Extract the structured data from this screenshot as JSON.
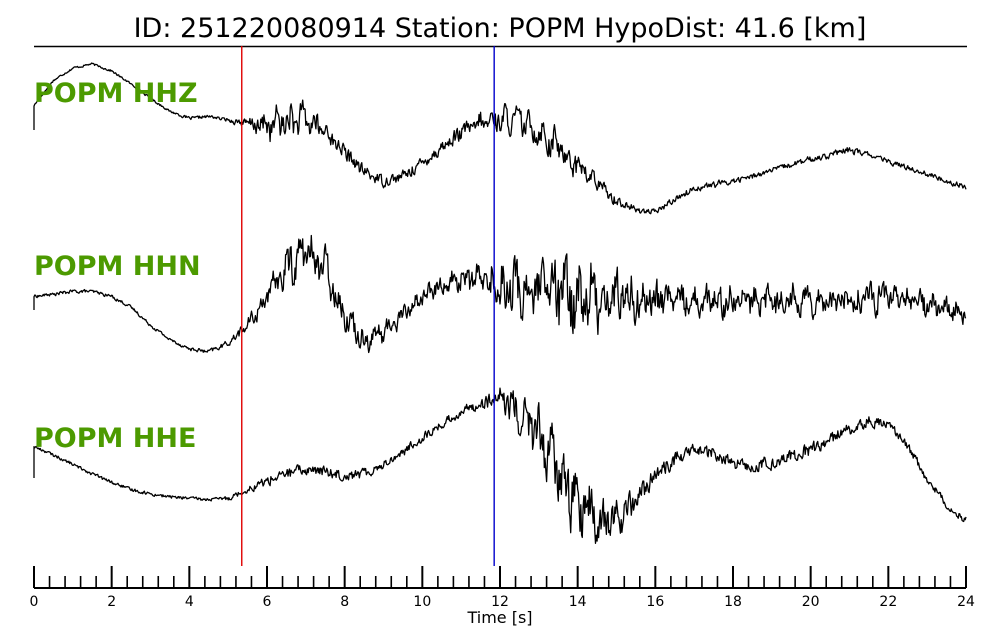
{
  "header": {
    "title": "ID: 251220080914   Station: POPM   HypoDist:    41.6 [km]"
  },
  "colors": {
    "trace": "#000000",
    "label": "#4c9a00",
    "p_pick": "#e00000",
    "s_pick": "#0000cc"
  },
  "chart_data": {
    "type": "line",
    "title": "ID: 251220080914   Station: POPM   HypoDist:    41.6 [km]",
    "xlabel": "Time [s]",
    "ylabel": "",
    "xlim": [
      0,
      24
    ],
    "grid": false,
    "x_ticks": [
      0,
      2,
      4,
      6,
      8,
      10,
      12,
      14,
      16,
      18,
      20,
      22,
      24
    ],
    "x_tick_labels": [
      "0",
      "2",
      "4",
      "6",
      "8",
      "10",
      "12",
      "14",
      "16",
      "18",
      "20",
      "22",
      "24"
    ],
    "x_minor_step": 0.4,
    "markers": [
      {
        "name": "P pick",
        "x": 5.35,
        "color": "#e00000"
      },
      {
        "name": "S pick",
        "x": 11.85,
        "color": "#0000cc"
      }
    ],
    "series": [
      {
        "name": "POPM HHZ",
        "x": [
          0,
          0.5,
          1,
          1.5,
          2,
          2.5,
          3,
          3.5,
          4,
          4.5,
          5,
          5.5,
          6,
          6.5,
          7,
          7.5,
          8,
          8.5,
          9,
          9.5,
          10,
          10.5,
          11,
          11.5,
          12,
          12.5,
          13,
          13.5,
          14,
          14.5,
          15,
          15.5,
          16,
          16.5,
          17,
          17.5,
          18,
          18.5,
          19,
          19.5,
          20,
          20.5,
          21,
          21.5,
          22,
          22.5,
          23,
          23.5,
          24
        ],
        "values": [
          0.2,
          0.55,
          0.72,
          0.78,
          0.68,
          0.5,
          0.3,
          0.12,
          0.02,
          0.05,
          0.0,
          -0.05,
          -0.08,
          -0.02,
          0.0,
          -0.15,
          -0.45,
          -0.72,
          -0.85,
          -0.78,
          -0.6,
          -0.38,
          -0.18,
          -0.05,
          0.02,
          -0.02,
          -0.15,
          -0.38,
          -0.62,
          -0.88,
          -1.12,
          -1.25,
          -1.28,
          -1.1,
          -0.95,
          -0.9,
          -0.85,
          -0.78,
          -0.7,
          -0.62,
          -0.55,
          -0.48,
          -0.42,
          -0.48,
          -0.58,
          -0.66,
          -0.75,
          -0.85,
          -0.93
        ],
        "noise": [
          0.02,
          0.02,
          0.02,
          0.02,
          0.02,
          0.02,
          0.02,
          0.02,
          0.03,
          0.03,
          0.03,
          0.1,
          0.24,
          0.3,
          0.24,
          0.18,
          0.14,
          0.12,
          0.1,
          0.1,
          0.12,
          0.12,
          0.14,
          0.18,
          0.2,
          0.22,
          0.24,
          0.26,
          0.22,
          0.14,
          0.1,
          0.06,
          0.05,
          0.06,
          0.06,
          0.06,
          0.05,
          0.05,
          0.05,
          0.05,
          0.06,
          0.06,
          0.06,
          0.05,
          0.05,
          0.05,
          0.05,
          0.05,
          0.05
        ]
      },
      {
        "name": "POPM HHN",
        "x": [
          0,
          0.5,
          1,
          1.5,
          2,
          2.5,
          3,
          3.5,
          4,
          4.5,
          5,
          5.5,
          6,
          6.5,
          7,
          7.5,
          8,
          8.5,
          9,
          9.5,
          10,
          10.5,
          11,
          11.5,
          12,
          12.5,
          13,
          13.5,
          14,
          14.5,
          15,
          15.5,
          16,
          16.5,
          17,
          17.5,
          18,
          18.5,
          19,
          19.5,
          20,
          20.5,
          21,
          21.5,
          22,
          22.5,
          23,
          23.5,
          24
        ],
        "values": [
          0.05,
          0.08,
          0.12,
          0.12,
          0.05,
          -0.1,
          -0.35,
          -0.55,
          -0.68,
          -0.72,
          -0.6,
          -0.35,
          0.05,
          0.45,
          0.68,
          0.45,
          -0.2,
          -0.55,
          -0.45,
          -0.2,
          0.05,
          0.2,
          0.3,
          0.28,
          0.22,
          0.15,
          0.1,
          0.08,
          0.05,
          0.05,
          0.05,
          0.03,
          0.02,
          0.02,
          0.02,
          0.0,
          0.0,
          -0.02,
          0.0,
          0.02,
          0.02,
          0.0,
          -0.02,
          0.02,
          0.05,
          0.0,
          -0.05,
          -0.12,
          -0.2
        ],
        "noise": [
          0.03,
          0.03,
          0.03,
          0.03,
          0.03,
          0.03,
          0.03,
          0.03,
          0.03,
          0.04,
          0.05,
          0.12,
          0.2,
          0.32,
          0.38,
          0.3,
          0.22,
          0.2,
          0.18,
          0.16,
          0.16,
          0.16,
          0.2,
          0.28,
          0.4,
          0.48,
          0.52,
          0.58,
          0.62,
          0.5,
          0.45,
          0.38,
          0.32,
          0.28,
          0.26,
          0.26,
          0.24,
          0.24,
          0.24,
          0.24,
          0.24,
          0.24,
          0.24,
          0.24,
          0.24,
          0.24,
          0.22,
          0.2,
          0.18
        ]
      },
      {
        "name": "POPM HHE",
        "x": [
          0,
          0.5,
          1,
          1.5,
          2,
          2.5,
          3,
          3.5,
          4,
          4.5,
          5,
          5.5,
          6,
          6.5,
          7,
          7.5,
          8,
          8.5,
          9,
          9.5,
          10,
          10.5,
          11,
          11.5,
          12,
          12.5,
          13,
          13.5,
          14,
          14.5,
          15,
          15.5,
          16,
          16.5,
          17,
          17.5,
          18,
          18.5,
          19,
          19.5,
          20,
          20.5,
          21,
          21.5,
          22,
          22.5,
          23,
          23.5,
          24
        ],
        "values": [
          0.3,
          0.18,
          0.05,
          -0.08,
          -0.2,
          -0.3,
          -0.36,
          -0.4,
          -0.42,
          -0.44,
          -0.42,
          -0.3,
          -0.18,
          -0.08,
          -0.02,
          -0.05,
          -0.1,
          -0.08,
          0.05,
          0.22,
          0.42,
          0.6,
          0.78,
          0.9,
          0.95,
          0.78,
          0.45,
          -0.05,
          -0.5,
          -0.75,
          -0.72,
          -0.45,
          -0.1,
          0.12,
          0.25,
          0.2,
          0.05,
          0.02,
          0.08,
          0.15,
          0.25,
          0.4,
          0.55,
          0.65,
          0.6,
          0.3,
          -0.15,
          -0.5,
          -0.72
        ],
        "noise": [
          0.03,
          0.03,
          0.03,
          0.03,
          0.03,
          0.03,
          0.03,
          0.03,
          0.03,
          0.03,
          0.04,
          0.06,
          0.1,
          0.1,
          0.1,
          0.1,
          0.1,
          0.1,
          0.08,
          0.08,
          0.08,
          0.08,
          0.1,
          0.12,
          0.18,
          0.32,
          0.42,
          0.48,
          0.55,
          0.45,
          0.32,
          0.2,
          0.14,
          0.14,
          0.12,
          0.12,
          0.12,
          0.12,
          0.12,
          0.12,
          0.12,
          0.12,
          0.12,
          0.1,
          0.08,
          0.08,
          0.08,
          0.08,
          0.08
        ]
      }
    ]
  }
}
